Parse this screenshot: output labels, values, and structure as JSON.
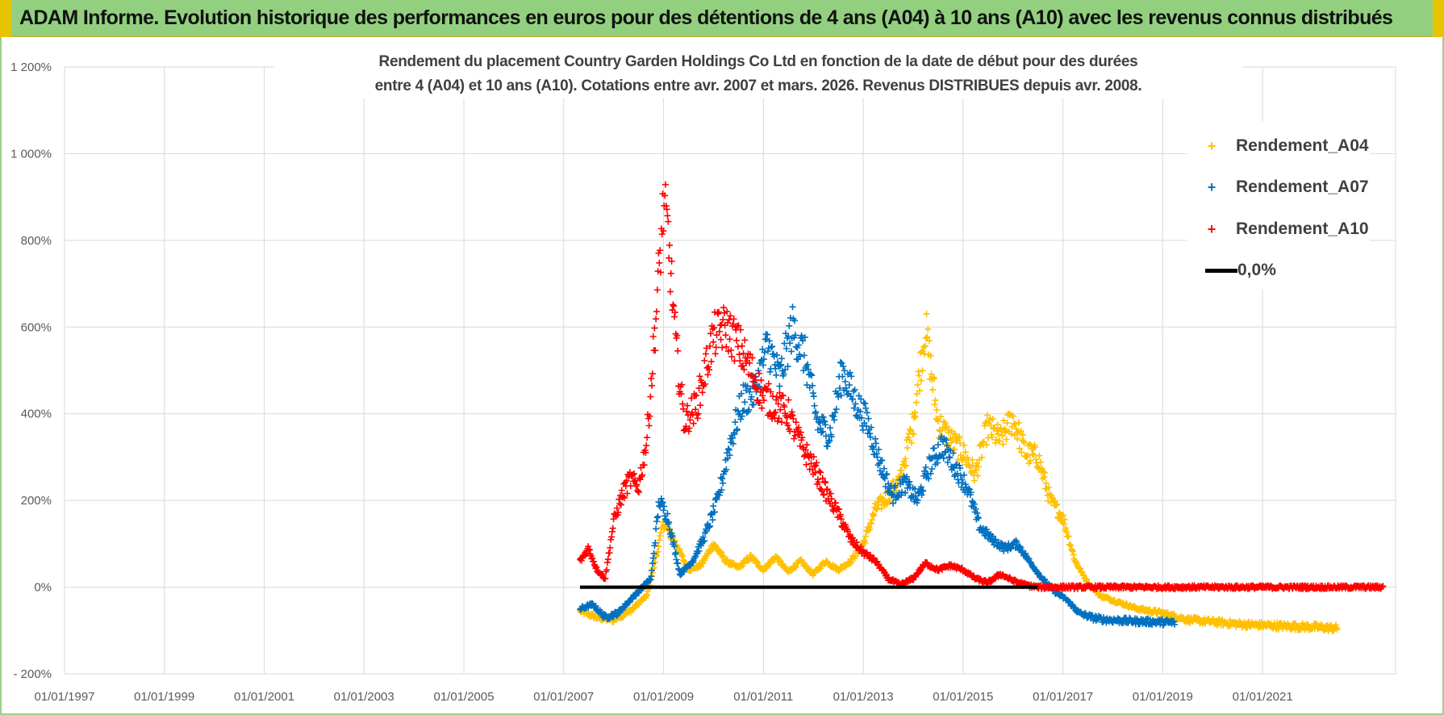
{
  "banner": {
    "title": "ADAM Informe. Evolution historique des performances en euros pour des détentions de 4 ans (A04) à 10 ans (A10) avec les revenus connus distribués",
    "color": "#92d07f"
  },
  "chart_data": {
    "type": "scatter",
    "title_lines": [
      "Rendement du placement Country Garden Holdings Co Ltd en fonction de la date de début pour des durées",
      "entre 4 (A04) et 10 ans (A10).  Cotations entre avr. 2007 et mars. 2026.  Revenus DISTRIBUES depuis avr. 2008."
    ],
    "x_axis": {
      "type": "date",
      "range": [
        "1997-01-01",
        "2023-09-01"
      ],
      "tick_labels": [
        "01/01/1997",
        "01/01/1999",
        "01/01/2001",
        "01/01/2003",
        "01/01/2005",
        "01/01/2007",
        "01/01/2009",
        "01/01/2011",
        "01/01/2013",
        "01/01/2015",
        "01/01/2017",
        "01/01/2019",
        "01/01/2021"
      ],
      "gridlines": true
    },
    "y_axis": {
      "unit": "%",
      "range": [
        -200,
        1200
      ],
      "tick_labels": [
        "- 200%",
        "0%",
        "200%",
        "400%",
        "600%",
        "800%",
        "1 000%",
        "1 200%"
      ],
      "tick_values": [
        -200,
        0,
        200,
        400,
        600,
        800,
        1000,
        1200
      ],
      "gridlines": true
    },
    "legend_position": "top-right",
    "series": [
      {
        "name": "Rendement_A04",
        "color": "#ffc000",
        "marker": "+",
        "points": [
          [
            "2007-05",
            -55
          ],
          [
            "2007-09",
            -70
          ],
          [
            "2008-01",
            -75
          ],
          [
            "2008-05",
            -55
          ],
          [
            "2008-09",
            -20
          ],
          [
            "2008-11",
            60
          ],
          [
            "2009-01",
            150
          ],
          [
            "2009-04",
            100
          ],
          [
            "2009-07",
            40
          ],
          [
            "2009-10",
            50
          ],
          [
            "2010-01",
            100
          ],
          [
            "2010-04",
            60
          ],
          [
            "2010-07",
            45
          ],
          [
            "2010-10",
            70
          ],
          [
            "2011-01",
            40
          ],
          [
            "2011-04",
            70
          ],
          [
            "2011-07",
            35
          ],
          [
            "2011-10",
            60
          ],
          [
            "2012-01",
            30
          ],
          [
            "2012-04",
            60
          ],
          [
            "2012-07",
            40
          ],
          [
            "2012-10",
            60
          ],
          [
            "2013-01",
            100
          ],
          [
            "2013-04",
            180
          ],
          [
            "2013-07",
            210
          ],
          [
            "2013-10",
            250
          ],
          [
            "2014-01",
            380
          ],
          [
            "2014-04",
            600
          ],
          [
            "2014-07",
            380
          ],
          [
            "2014-10",
            340
          ],
          [
            "2015-01",
            310
          ],
          [
            "2015-04",
            260
          ],
          [
            "2015-07",
            370
          ],
          [
            "2015-10",
            340
          ],
          [
            "2016-01",
            390
          ],
          [
            "2016-04",
            310
          ],
          [
            "2016-07",
            300
          ],
          [
            "2016-10",
            200
          ],
          [
            "2017-01",
            160
          ],
          [
            "2017-04",
            60
          ],
          [
            "2017-07",
            10
          ],
          [
            "2017-10",
            -20
          ],
          [
            "2018-01",
            -30
          ],
          [
            "2018-07",
            -50
          ],
          [
            "2019-01",
            -60
          ],
          [
            "2019-07",
            -75
          ],
          [
            "2020-01",
            -80
          ],
          [
            "2020-07",
            -85
          ],
          [
            "2021-01",
            -88
          ],
          [
            "2021-07",
            -90
          ],
          [
            "2022-01",
            -92
          ],
          [
            "2022-07",
            -95
          ]
        ]
      },
      {
        "name": "Rendement_A07",
        "color": "#0070c0",
        "marker": "+",
        "points": [
          [
            "2007-05",
            -50
          ],
          [
            "2007-08",
            -40
          ],
          [
            "2007-11",
            -70
          ],
          [
            "2008-02",
            -60
          ],
          [
            "2008-05",
            -30
          ],
          [
            "2008-08",
            0
          ],
          [
            "2008-10",
            20
          ],
          [
            "2008-12",
            200
          ],
          [
            "2009-02",
            160
          ],
          [
            "2009-05",
            30
          ],
          [
            "2009-08",
            60
          ],
          [
            "2009-11",
            120
          ],
          [
            "2010-02",
            200
          ],
          [
            "2010-05",
            330
          ],
          [
            "2010-08",
            430
          ],
          [
            "2010-11",
            450
          ],
          [
            "2011-02",
            560
          ],
          [
            "2011-05",
            480
          ],
          [
            "2011-08",
            600
          ],
          [
            "2011-11",
            530
          ],
          [
            "2012-02",
            380
          ],
          [
            "2012-05",
            350
          ],
          [
            "2012-08",
            500
          ],
          [
            "2012-11",
            430
          ],
          [
            "2013-02",
            380
          ],
          [
            "2013-05",
            290
          ],
          [
            "2013-08",
            210
          ],
          [
            "2013-11",
            240
          ],
          [
            "2014-02",
            200
          ],
          [
            "2014-05",
            280
          ],
          [
            "2014-08",
            330
          ],
          [
            "2014-11",
            280
          ],
          [
            "2015-02",
            230
          ],
          [
            "2015-05",
            140
          ],
          [
            "2015-08",
            110
          ],
          [
            "2015-11",
            90
          ],
          [
            "2016-02",
            100
          ],
          [
            "2016-05",
            60
          ],
          [
            "2016-08",
            20
          ],
          [
            "2016-11",
            -10
          ],
          [
            "2017-02",
            -30
          ],
          [
            "2017-05",
            -60
          ],
          [
            "2017-08",
            -70
          ],
          [
            "2017-11",
            -75
          ],
          [
            "2018-05",
            -78
          ],
          [
            "2018-11",
            -80
          ],
          [
            "2019-04",
            -82
          ]
        ]
      },
      {
        "name": "Rendement_A10",
        "color": "#ff0000",
        "marker": "+",
        "points": [
          [
            "2007-05",
            60
          ],
          [
            "2007-07",
            90
          ],
          [
            "2007-09",
            40
          ],
          [
            "2007-11",
            20
          ],
          [
            "2008-01",
            150
          ],
          [
            "2008-03",
            210
          ],
          [
            "2008-05",
            250
          ],
          [
            "2008-07",
            230
          ],
          [
            "2008-09",
            340
          ],
          [
            "2008-11",
            600
          ],
          [
            "2009-01",
            880
          ],
          [
            "2009-02",
            820
          ],
          [
            "2009-04",
            560
          ],
          [
            "2009-06",
            380
          ],
          [
            "2009-09",
            420
          ],
          [
            "2009-11",
            500
          ],
          [
            "2010-01",
            580
          ],
          [
            "2010-04",
            600
          ],
          [
            "2010-07",
            560
          ],
          [
            "2010-10",
            500
          ],
          [
            "2011-01",
            440
          ],
          [
            "2011-04",
            420
          ],
          [
            "2011-07",
            400
          ],
          [
            "2011-10",
            330
          ],
          [
            "2012-01",
            280
          ],
          [
            "2012-04",
            220
          ],
          [
            "2012-07",
            170
          ],
          [
            "2012-10",
            110
          ],
          [
            "2013-01",
            80
          ],
          [
            "2013-04",
            60
          ],
          [
            "2013-07",
            20
          ],
          [
            "2013-10",
            5
          ],
          [
            "2014-01",
            20
          ],
          [
            "2014-04",
            55
          ],
          [
            "2014-07",
            40
          ],
          [
            "2014-10",
            50
          ],
          [
            "2015-01",
            40
          ],
          [
            "2015-04",
            20
          ],
          [
            "2015-07",
            10
          ],
          [
            "2015-10",
            30
          ],
          [
            "2016-01",
            15
          ],
          [
            "2016-04",
            5
          ],
          [
            "2016-07",
            0
          ],
          [
            "2017-01",
            0
          ],
          [
            "2018-01",
            0
          ],
          [
            "2019-01",
            0
          ],
          [
            "2020-01",
            0
          ],
          [
            "2021-01",
            0
          ],
          [
            "2022-01",
            0
          ],
          [
            "2023-06",
            0
          ]
        ]
      },
      {
        "name": "0,0%",
        "color": "#000000",
        "marker": "line",
        "points": [
          [
            "2007-05",
            0
          ],
          [
            "2016-07",
            0
          ]
        ]
      }
    ]
  },
  "legend": {
    "items": [
      {
        "label": "Rendement_A04",
        "color": "#ffc000",
        "marker": "+"
      },
      {
        "label": "Rendement_A07",
        "color": "#0070c0",
        "marker": "+"
      },
      {
        "label": "Rendement_A10",
        "color": "#ff0000",
        "marker": "+"
      },
      {
        "label": "0,0%",
        "color": "#000000",
        "marker": "line"
      }
    ]
  }
}
